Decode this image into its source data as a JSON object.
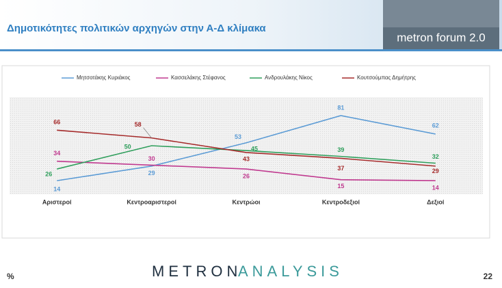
{
  "header": {
    "title": "Δημοτικότητες πολιτικών αρχηγών στην Α-Δ κλίμακα",
    "logo": "metron forum 2.0"
  },
  "chart_data": {
    "type": "line",
    "categories": [
      "Αριστεροί",
      "Κεντροαριστεροί",
      "Κεντρώοι",
      "Κεντροδεξιοί",
      "Δεξιοί"
    ],
    "series": [
      {
        "name": "Μητσοτάκης Κυριάκος",
        "color": "#5b9bd5",
        "values": [
          14,
          29,
          53,
          81,
          62
        ]
      },
      {
        "name": "Κασσελάκης Στέφανος",
        "color": "#c0398f",
        "values": [
          34,
          30,
          26,
          15,
          14
        ]
      },
      {
        "name": "Ανδρουλάκης Νίκος",
        "color": "#2e9e5b",
        "values": [
          26,
          50,
          45,
          39,
          32
        ]
      },
      {
        "name": "Κουτσούμπας Δημήτρης",
        "color": "#a52a2a",
        "values": [
          66,
          58,
          43,
          37,
          29
        ]
      }
    ],
    "ylim": [
      0,
      100
    ],
    "legend": "top"
  },
  "footer": {
    "unit": "%",
    "brand_a": "METRON",
    "brand_b": "ANALYSIS",
    "page": "22"
  }
}
